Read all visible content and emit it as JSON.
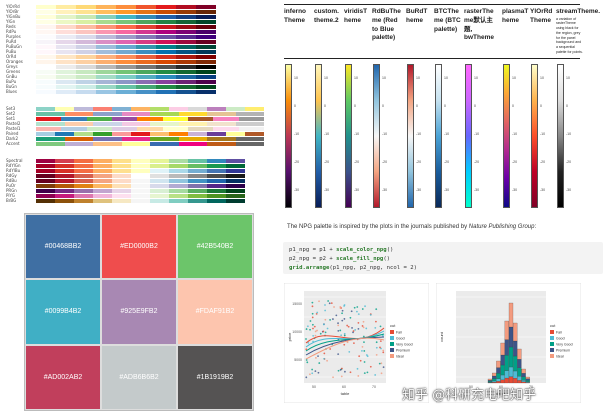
{
  "palettes": {
    "groups": [
      {
        "names": [
          "YlOrRd",
          "YlOrBr",
          "YlGnBu",
          "YlGn",
          "Reds",
          "RdPu",
          "Purples",
          "PuRd",
          "PuBuGn",
          "PuBu",
          "OrRd",
          "Oranges",
          "Greys",
          "Greens",
          "GnBu",
          "BuPu",
          "BuGn",
          "Blues"
        ],
        "kind": "seq"
      },
      {
        "names": [
          "Set3",
          "Set2",
          "Set1",
          "Pastel2",
          "Pastel1",
          "Paired",
          "Dark2",
          "Accent"
        ],
        "kind": "qual"
      },
      {
        "names": [
          "Spectral",
          "RdYlGn",
          "RdYlBu",
          "RdGy",
          "RdBu",
          "PuOr",
          "PRGn",
          "PiYG",
          "BrBG"
        ],
        "kind": "div"
      }
    ]
  },
  "color_grid": [
    {
      "label": "#00468BB2",
      "color": "#3f6fa3"
    },
    {
      "label": "#ED0000B2",
      "color": "#ef4d4d"
    },
    {
      "label": "#42B540B2",
      "color": "#6cc56a"
    },
    {
      "label": "#0099B4B2",
      "color": "#40afc5"
    },
    {
      "label": "#925E9FB2",
      "color": "#a888b3"
    },
    {
      "label": "#FDAF91B2",
      "color": "#fdc5ae"
    },
    {
      "label": "#AD002AB2",
      "color": "#c13f5c"
    },
    {
      "label": "#ADB6B6B2",
      "color": "#c4cacb"
    },
    {
      "label": "#1B1919B2",
      "color": "#555353"
    }
  ],
  "table": {
    "columns": [
      {
        "title": "inferno Theme"
      },
      {
        "title": "custom. theme.2"
      },
      {
        "title": "viridisT heme"
      },
      {
        "title": "RdBuThe me (Red to Blue palette)"
      },
      {
        "title": "BuRdT heme"
      },
      {
        "title": "BTCThe me (BTC palette)"
      },
      {
        "title": "rasterThe me默认主题, bwTheme"
      },
      {
        "title": "plasmaT heme"
      },
      {
        "title": "YlOrRd Theme"
      }
    ],
    "last_column": {
      "title": "streamTheme.",
      "desc": "a variation of rasterTheme using black for the region, grey for the panel background and a sequential palette for points."
    },
    "ticks": [
      "10",
      "0",
      "-10",
      "-20",
      "-30"
    ]
  },
  "npg": {
    "intro": "The NPG palette is inspired by the plots in the journals published by",
    "journal": "Nature Publishing Group",
    "code_lines": [
      {
        "pre": "p1_npg = p1 + ",
        "fn": "scale_color_npg",
        "post": "()"
      },
      {
        "pre": "p2_npg = p2 + ",
        "fn": "scale_fill_npg",
        "post": "()"
      },
      {
        "pre": "",
        "fn": "grid.arrange",
        "post": "(p1_npg, p2_npg, ncol = 2)"
      }
    ]
  },
  "plot1": {
    "xlabel": "table",
    "ylabel": "price",
    "legend_title": "cut",
    "legend": [
      "Fair",
      "Good",
      "Very Good",
      "Premium",
      "Ideal"
    ],
    "colors": [
      "#E64B35",
      "#4DBBD5",
      "#00A087",
      "#3C5488",
      "#F39B7F"
    ],
    "yticks": [
      "15000",
      "10000",
      "5000"
    ],
    "xticks": [
      "50",
      "60",
      "70"
    ]
  },
  "plot2": {
    "xlabel": "depth",
    "ylabel": "count",
    "legend_title": "cut",
    "legend": [
      "Fair",
      "Good",
      "Very Good",
      "Premium",
      "Ideal"
    ],
    "colors": [
      "#E64B35",
      "#4DBBD5",
      "#00A087",
      "#3C5488",
      "#F39B7F"
    ],
    "xticks": [
      "50",
      "60",
      "70"
    ]
  },
  "watermark": "知乎 @科研充电吧知乎"
}
